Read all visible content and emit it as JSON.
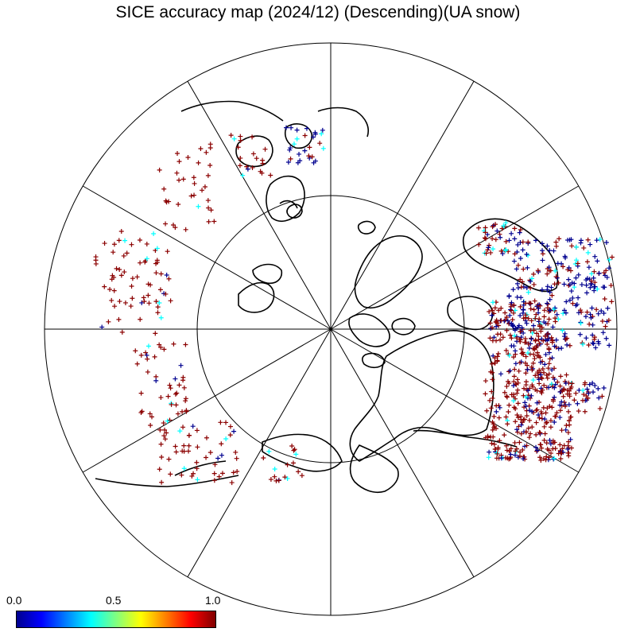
{
  "title": "SICE accuracy map (2024/12) (Descending)(UA snow)",
  "colorbar": {
    "labels": [
      "0.0",
      "0.5",
      "1.0"
    ],
    "min": 0.0,
    "max": 1.0,
    "stops": [
      "#00008f",
      "#0000ff",
      "#0080ff",
      "#00ffff",
      "#80ff80",
      "#ffff00",
      "#ff8000",
      "#ff0000",
      "#800000"
    ]
  },
  "map": {
    "projection": "north-polar-stereographic",
    "graticule_parallels": 2,
    "graticule_meridians": 12,
    "marker": "plus",
    "marker_colors": {
      "low": "#00008f",
      "mid": "#00ffff",
      "high": "#8b0000"
    }
  }
}
